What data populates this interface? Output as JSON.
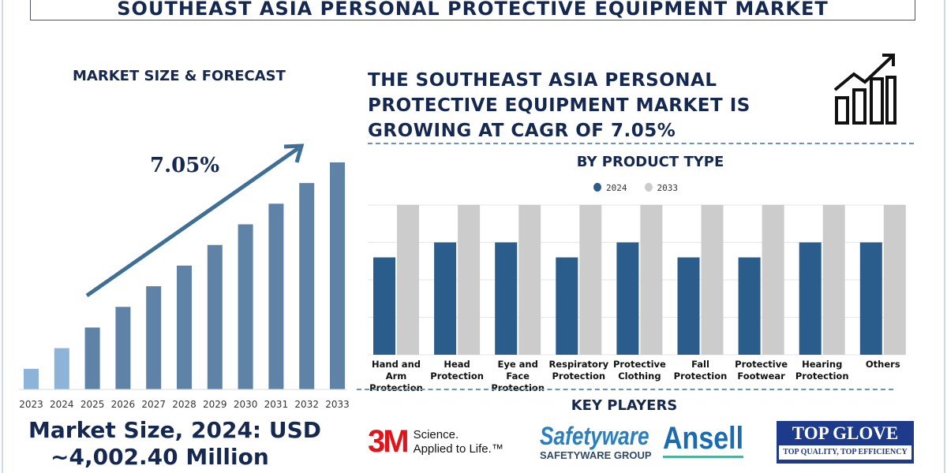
{
  "title": "SOUTHEAST ASIA PERSONAL PROTECTIVE EQUIPMENT MARKET",
  "left": {
    "heading": "MARKET SIZE & FORECAST",
    "cagr_label": "7.05%",
    "market_size_line1": "Market Size, 2024: USD",
    "market_size_line2": "~4,002.40 Million"
  },
  "right": {
    "headline_lines": [
      "THE SOUTHEAST ASIA PERSONAL",
      "PROTECTIVE EQUIPMENT MARKET IS",
      "GROWING AT CAGR OF 7.05%"
    ],
    "icon": "growth-chart-icon",
    "key_players_heading": "KEY PLAYERS",
    "players": {
      "m3": {
        "mark": "3M",
        "tagline1": "Science.",
        "tagline2": "Applied to Life.™"
      },
      "safetyware": {
        "mark": "Safetyware",
        "sub": "SAFETYWARE GROUP"
      },
      "ansell": {
        "mark": "Ansell"
      },
      "topglove": {
        "mark": "TOP GLOVE",
        "sub": "TOP QUALITY, TOP EFFICIENCY"
      }
    }
  },
  "chart_data": [
    {
      "type": "bar",
      "title": "",
      "categories": [
        "2023",
        "2024",
        "2025",
        "2026",
        "2027",
        "2028",
        "2029",
        "2030",
        "2031",
        "2032",
        "2033"
      ],
      "values": [
        1,
        2,
        3,
        4,
        5,
        6,
        7,
        8,
        9,
        10,
        11
      ],
      "colors": {
        "historical": "#8db3d9",
        "forecast": "#5f83a6"
      },
      "annotation": "7.05%",
      "grid": false
    },
    {
      "type": "bar",
      "title": "BY PRODUCT TYPE",
      "categories": [
        "Hand and Arm Protection",
        "Head Protection",
        "Eye and Face Protection",
        "Respiratory Protection",
        "Protective Clothing",
        "Fall Protection",
        "Protective Footwear",
        "Hearing Protection",
        "Others"
      ],
      "series": [
        {
          "name": "2024",
          "color": "#2a5d8c",
          "values": [
            2.6,
            3,
            3,
            2.6,
            3,
            2.6,
            2.6,
            3,
            3
          ]
        },
        {
          "name": "2033",
          "color": "#cccccc",
          "values": [
            4,
            4,
            4,
            4,
            4,
            4,
            4,
            4,
            4
          ]
        }
      ],
      "ylim": [
        0,
        4
      ],
      "grid": true,
      "legend": "top"
    }
  ]
}
